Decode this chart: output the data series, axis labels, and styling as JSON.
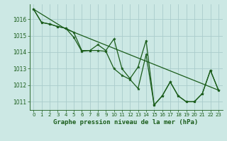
{
  "background_color": "#cce8e4",
  "grid_color": "#aacccc",
  "line_color": "#1a5c1a",
  "marker_color": "#1a5c1a",
  "title": "Graphe pression niveau de la mer (hPa)",
  "ylim": [
    1010.5,
    1016.9
  ],
  "xlim": [
    -0.5,
    23.5
  ],
  "yticks": [
    1011,
    1012,
    1013,
    1014,
    1015,
    1016
  ],
  "xticks": [
    0,
    1,
    2,
    3,
    4,
    5,
    6,
    7,
    8,
    9,
    10,
    11,
    12,
    13,
    14,
    15,
    16,
    17,
    18,
    19,
    20,
    21,
    22,
    23
  ],
  "line1_x": [
    0,
    1,
    2,
    3,
    4,
    5,
    6,
    7,
    8,
    9,
    10,
    11,
    12,
    13,
    14,
    15,
    16,
    17,
    18,
    19,
    20,
    21,
    22,
    23
  ],
  "line1_y": [
    1016.6,
    1015.8,
    1015.7,
    1015.55,
    1015.45,
    1015.2,
    1014.1,
    1014.1,
    1014.45,
    1014.1,
    1014.8,
    1013.0,
    1012.4,
    1013.1,
    1014.7,
    1010.8,
    1011.35,
    1012.2,
    1011.35,
    1011.0,
    1011.0,
    1011.5,
    1012.9,
    1011.7
  ],
  "line2_x": [
    0,
    1,
    2,
    3,
    4,
    5,
    6,
    7,
    8,
    9,
    10,
    11,
    12,
    13,
    14,
    15,
    16,
    17,
    18,
    19,
    20,
    21,
    22,
    23
  ],
  "line2_y": [
    1016.6,
    1015.8,
    1015.7,
    1015.55,
    1015.45,
    1014.9,
    1014.05,
    1014.1,
    1014.1,
    1014.05,
    1013.0,
    1012.6,
    1012.35,
    1011.8,
    1013.85,
    1010.8,
    1011.35,
    1012.2,
    1011.35,
    1011.0,
    1011.0,
    1011.5,
    1012.9,
    1011.7
  ],
  "line3_x": [
    0,
    4,
    23
  ],
  "line3_y": [
    1016.6,
    1015.4,
    1011.7
  ],
  "title_fontsize": 6.5,
  "tick_fontsize": 5.5,
  "xtick_fontsize": 5.0
}
